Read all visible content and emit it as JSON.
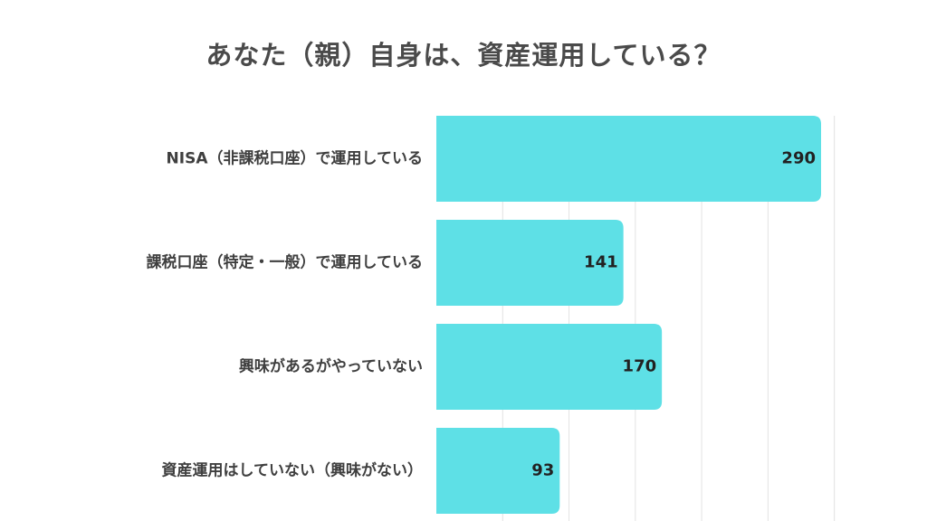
{
  "colors": {
    "bar": "#5ee0e6",
    "grid": "#e2e2e2",
    "title": "#4a4a4a",
    "label": "#3f3f3f",
    "value": "#222222"
  },
  "chart_data": {
    "type": "bar",
    "orientation": "horizontal",
    "title": "あなた（親）自身は、資産運用している？",
    "categories": [
      "NISA（非課税口座）で運用している",
      "課税口座（特定・一般）で運用している",
      "興味があるがやっていない",
      "資産運用はしていない（興味がない）"
    ],
    "values": [
      290,
      141,
      170,
      93
    ],
    "xlim": [
      0,
      300
    ],
    "grid": true,
    "legend": "none"
  }
}
